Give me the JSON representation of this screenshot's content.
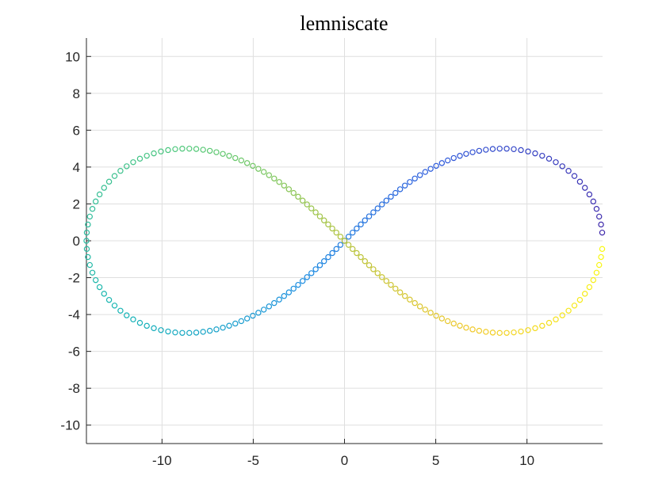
{
  "chart_data": {
    "type": "scatter",
    "title": "lemniscate",
    "xlabel": "",
    "ylabel": "",
    "xlim": [
      -14.142,
      14.142
    ],
    "ylim": [
      -11,
      11
    ],
    "xticks": [
      -10,
      -5,
      0,
      5,
      10
    ],
    "yticks": [
      -10,
      -8,
      -6,
      -4,
      -2,
      0,
      2,
      4,
      6,
      8,
      10
    ],
    "grid": true,
    "legend": "none",
    "marker": "open circle",
    "colormap": "parula",
    "series": [
      {
        "curve": "x = a*cos(t)/(1+sin(t)^2), y = a*sin(t)*cos(t)/(1+sin(t)^2)",
        "a": 14.142,
        "t_range": [
          0,
          6.2832
        ],
        "points": 200,
        "color_by": "t"
      }
    ]
  }
}
